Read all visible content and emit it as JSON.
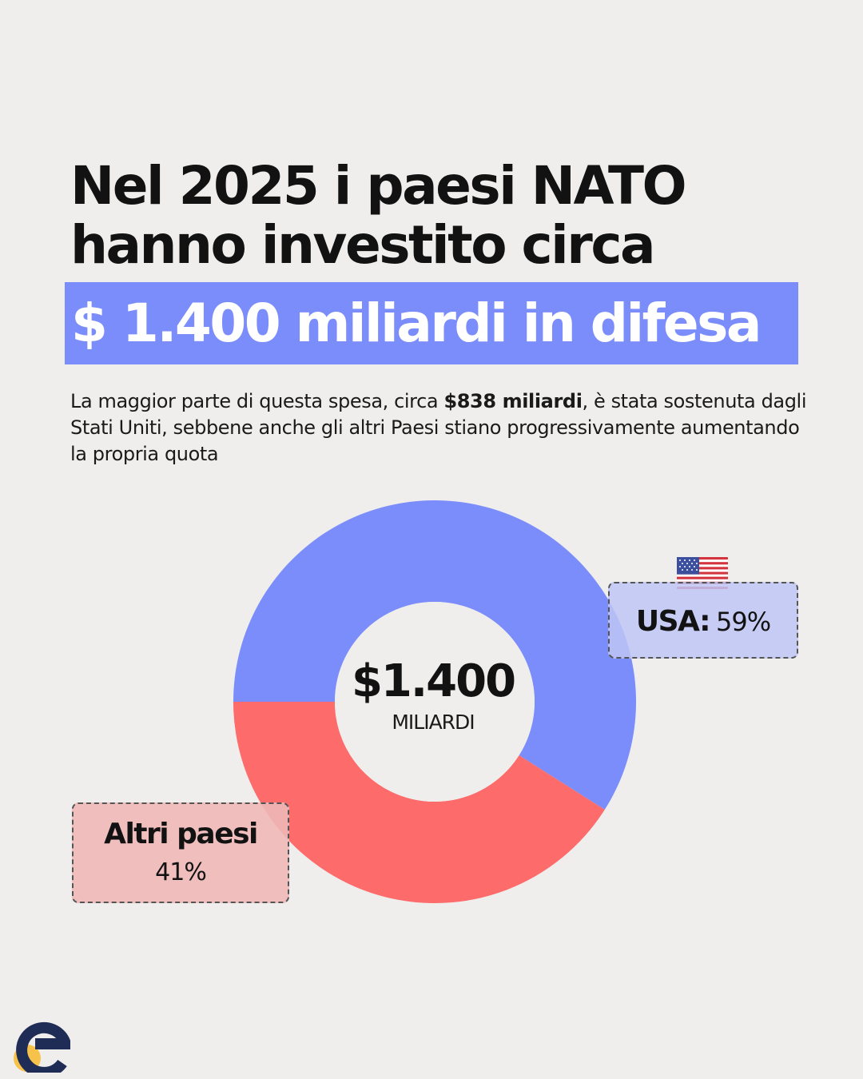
{
  "headline": {
    "line1": "Nel 2025 i paesi NATO",
    "line2": "hanno investito circa",
    "highlight": "$ 1.400 miliardi in difesa"
  },
  "subtitle": {
    "before": "La maggior parte di questa spesa, circa ",
    "bold": "$838 miliardi",
    "after": ", è stata sostenuta dagli Stati Uniti, sebbene anche gli altri Paesi stiano progressivamente aumentando la propria quota"
  },
  "chart_data": {
    "type": "pie",
    "variant": "donut",
    "center_value": "$1.400",
    "center_label": "MILIARDI",
    "slices": [
      {
        "name": "USA:",
        "percent_label": "59%",
        "value": 59,
        "color": "#7b8dfb",
        "icon": "us-flag-icon"
      },
      {
        "name": "Altri paesi",
        "percent_label": "41%",
        "value": 41,
        "color": "#fd6b6a"
      }
    ],
    "start_angle_deg": 180,
    "direction": "clockwise"
  },
  "colors": {
    "background": "#efeeec",
    "accent": "#7b8dfb",
    "red": "#fd6b6a",
    "text": "#121212",
    "logo_dot": "#f7c24a",
    "logo_e": "#1f2c56"
  }
}
